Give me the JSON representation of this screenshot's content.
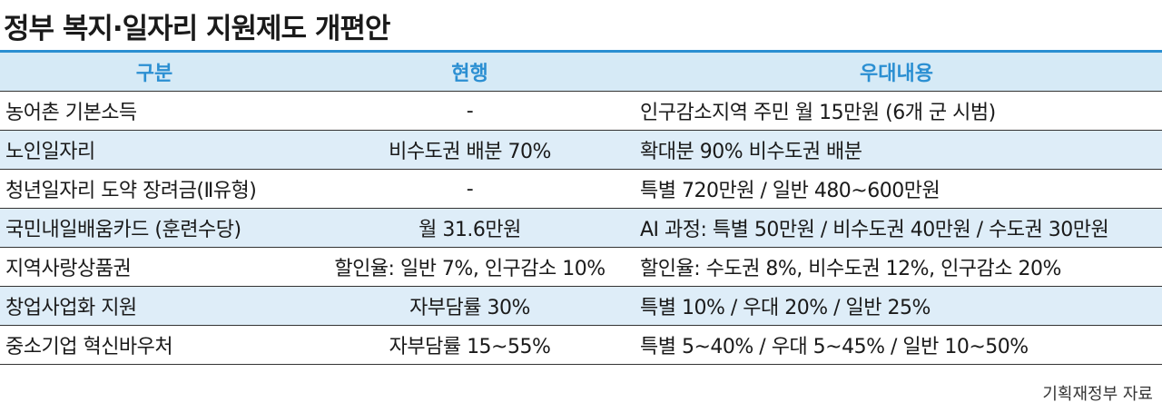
{
  "title": "정부 복지·일자리 지원제도 개편안",
  "table": {
    "header": [
      "구분",
      "현행",
      "우대내용"
    ],
    "rows": [
      [
        "농어촌 기본소득",
        "-",
        "인구감소지역 주민 월 15만원 (6개 군 시범)"
      ],
      [
        "노인일자리",
        "비수도권 배분 70%",
        "확대분 90% 비수도권 배분"
      ],
      [
        "청년일자리 도약 장려금(Ⅱ유형)",
        "-",
        "특별 720만원 / 일반 480~600만원"
      ],
      [
        "국민내일배움카드 (훈련수당)",
        "월 31.6만원",
        "AI 과정: 특별 50만원 / 비수도권 40만원 / 수도권 30만원"
      ],
      [
        "지역사랑상품권",
        "할인율: 일반 7%, 인구감소 10%",
        "할인율: 수도권 8%, 비수도권 12%, 인구감소 20%"
      ],
      [
        "창업사업화 지원",
        "자부담률 30%",
        "특별 10% / 우대 20% / 일반 25%"
      ],
      [
        "중소기업 혁신바우처",
        "자부담률 15~55%",
        "특별 5~40% / 우대 5~45% / 일반 10~50%"
      ]
    ]
  },
  "source": "기획재정부 자료"
}
